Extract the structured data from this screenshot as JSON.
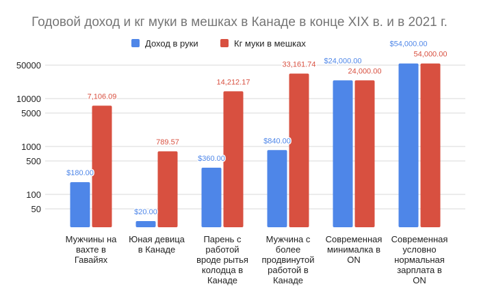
{
  "chart_data": {
    "type": "bar",
    "title": "Годовой доход и кг муки в мешках в Канаде в конце XIX в. и в 2021 г.",
    "xlabel": "",
    "ylabel": "",
    "yscale": "log",
    "yticks": [
      50,
      100,
      500,
      1000,
      5000,
      10000,
      50000
    ],
    "ytick_labels": [
      "50",
      "100",
      "500",
      "1000",
      "5000",
      "10000",
      "50000"
    ],
    "grid": true,
    "legend_position": "top",
    "categories": [
      "Мужчины на\nвахте в\nГавайях",
      "Юная девица\nв Канаде",
      "Парень с\nработой\nвроде рытья\nколодца в\nКанаде",
      "Мужчина с\nболее\nпродвинутой\nработой в\nКанаде",
      "Современная\nминималка в\nON",
      "Современная\nусловно\nнормальная\nзарплата в\nON"
    ],
    "series": [
      {
        "name": "Доход в руки",
        "color": "#4e86e8",
        "values": [
          180,
          20,
          360,
          840,
          24000,
          54000
        ],
        "labels": [
          "$180.00",
          "$20.00",
          "$360.00",
          "$840.00",
          "$24,000.00",
          "$54,000.00"
        ]
      },
      {
        "name": "Кг муки в мешках",
        "color": "#d85040",
        "values": [
          7106.09,
          789.57,
          14212.17,
          33161.74,
          24000,
          54000
        ],
        "labels": [
          "7,106.09",
          "789.57",
          "14,212.17",
          "33,161.74",
          "24,000.00",
          "54,000.00"
        ]
      }
    ]
  }
}
